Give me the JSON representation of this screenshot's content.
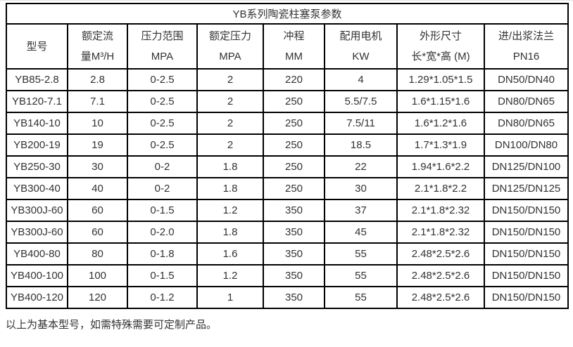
{
  "table": {
    "title": "YB系列陶瓷柱塞泵参数",
    "columns": [
      {
        "line1": "型号",
        "line2": ""
      },
      {
        "line1": "额定流",
        "line2": "量M³/H"
      },
      {
        "line1": "压力范围",
        "line2": "MPA"
      },
      {
        "line1": "额定压力",
        "line2": "MPA"
      },
      {
        "line1": "冲程",
        "line2": "MM"
      },
      {
        "line1": "配用电机",
        "line2": "KW"
      },
      {
        "line1": "外形尺寸",
        "line2": "长*宽*高 (M)"
      },
      {
        "line1": "进/出浆法兰",
        "line2": "PN16"
      }
    ],
    "rows": [
      [
        "YB85-2.8",
        "2.8",
        "0-2.5",
        "2",
        "220",
        "4",
        "1.29*1.05*1.5",
        "DN50/DN40"
      ],
      [
        "YB120-7.1",
        "7.1",
        "0-2.5",
        "2",
        "250",
        "5.5/7.5",
        "1.6*1.15*1.6",
        "DN80/DN65"
      ],
      [
        "YB140-10",
        "10",
        "0-2.5",
        "2",
        "250",
        "7.5/11",
        "1.6*1.2*1.6",
        "DN80/DN65"
      ],
      [
        "YB200-19",
        "19",
        "0-2.5",
        "2",
        "250",
        "18.5",
        "1.7*1.3*1.9",
        "DN100/DN80"
      ],
      [
        "YB250-30",
        "30",
        "0-2",
        "1.8",
        "250",
        "22",
        "1.94*1.6*2.2",
        "DN125/DN100"
      ],
      [
        "YB300-40",
        "40",
        "0-2",
        "1.8",
        "250",
        "30",
        "2.1*1.8*2.2",
        "DN125/DN125"
      ],
      [
        "YB300J-60",
        "60",
        "0-1.5",
        "1.2",
        "350",
        "37",
        "2.1*1.8*2.32",
        "DN150/DN150"
      ],
      [
        "YB300J-60",
        "60",
        "0-2.0",
        "1.8",
        "350",
        "45",
        "2.1*1.8*2.32",
        "DN150/DN150"
      ],
      [
        "YB400-80",
        "80",
        "0-1.8",
        "1.6",
        "350",
        "55",
        "2.48*2.5*2.6",
        "DN150/DN150"
      ],
      [
        "YB400-100",
        "100",
        "0-1.5",
        "1.2",
        "350",
        "55",
        "2.48*2.5*2.6",
        "DN150/DN150"
      ],
      [
        "YB400-120",
        "120",
        "0-1.2",
        "1",
        "350",
        "55",
        "2.48*2.5*2.6",
        "DN150/DN150"
      ]
    ]
  },
  "footnote": "以上为基本型号，如需特殊需要可定制产品。",
  "colors": {
    "border": "#000000",
    "text": "#333333",
    "background": "#ffffff"
  }
}
